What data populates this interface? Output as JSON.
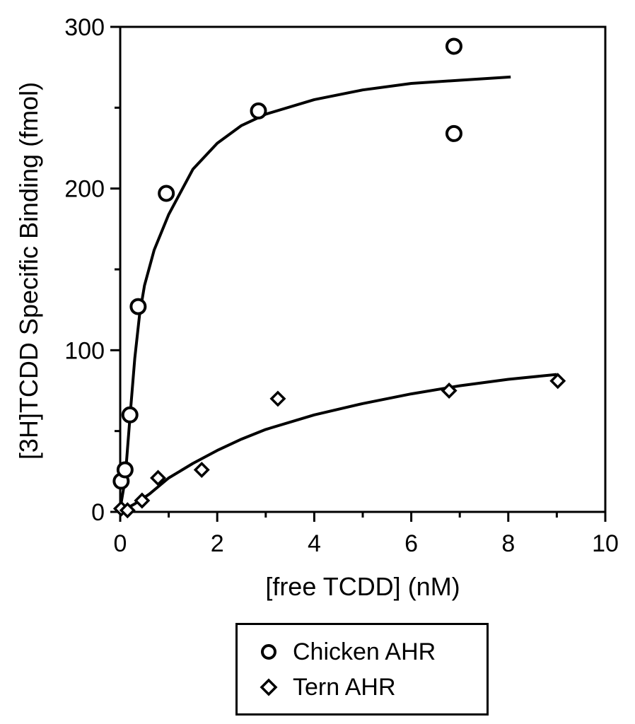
{
  "chart_data": {
    "type": "scatter",
    "xlabel": "[free TCDD] (nM)",
    "ylabel": "[3H]TCDD Specific Binding  (fmol)",
    "xlim": [
      0,
      10
    ],
    "ylim": [
      0,
      300
    ],
    "x_ticks": [
      "0",
      "2",
      "4",
      "6",
      "8",
      "10"
    ],
    "y_ticks": [
      "0",
      "100",
      "200",
      "300"
    ],
    "grid": false,
    "legend_position": "bottom-center",
    "series": [
      {
        "name": "Chicken AHR",
        "marker": "circle",
        "points": [
          {
            "x": 0.02,
            "y": 19
          },
          {
            "x": 0.1,
            "y": 26
          },
          {
            "x": 0.2,
            "y": 60
          },
          {
            "x": 0.37,
            "y": 127
          },
          {
            "x": 0.95,
            "y": 197
          },
          {
            "x": 2.85,
            "y": 248
          },
          {
            "x": 6.88,
            "y": 288
          },
          {
            "x": 6.88,
            "y": 234
          }
        ],
        "fit_curve": [
          {
            "x": 0.0,
            "y": 2
          },
          {
            "x": 0.1,
            "y": 20
          },
          {
            "x": 0.2,
            "y": 58
          },
          {
            "x": 0.3,
            "y": 95
          },
          {
            "x": 0.4,
            "y": 122
          },
          {
            "x": 0.5,
            "y": 140
          },
          {
            "x": 0.7,
            "y": 162
          },
          {
            "x": 1.0,
            "y": 184
          },
          {
            "x": 1.5,
            "y": 212
          },
          {
            "x": 2.0,
            "y": 228
          },
          {
            "x": 2.5,
            "y": 239
          },
          {
            "x": 3.0,
            "y": 246
          },
          {
            "x": 4.0,
            "y": 255
          },
          {
            "x": 5.0,
            "y": 261
          },
          {
            "x": 6.0,
            "y": 265
          },
          {
            "x": 7.0,
            "y": 267
          },
          {
            "x": 8.05,
            "y": 269
          }
        ]
      },
      {
        "name": "Tern AHR",
        "marker": "diamond",
        "points": [
          {
            "x": 0.02,
            "y": 2
          },
          {
            "x": 0.15,
            "y": 1
          },
          {
            "x": 0.45,
            "y": 7
          },
          {
            "x": 0.78,
            "y": 21
          },
          {
            "x": 1.68,
            "y": 26
          },
          {
            "x": 3.25,
            "y": 70
          },
          {
            "x": 6.78,
            "y": 75
          },
          {
            "x": 9.02,
            "y": 81
          }
        ],
        "fit_curve": [
          {
            "x": 0.0,
            "y": 0
          },
          {
            "x": 0.3,
            "y": 5
          },
          {
            "x": 0.6,
            "y": 11
          },
          {
            "x": 1.0,
            "y": 21
          },
          {
            "x": 1.5,
            "y": 30
          },
          {
            "x": 2.0,
            "y": 38
          },
          {
            "x": 2.5,
            "y": 45
          },
          {
            "x": 3.0,
            "y": 51
          },
          {
            "x": 4.0,
            "y": 60
          },
          {
            "x": 5.0,
            "y": 67
          },
          {
            "x": 6.0,
            "y": 73
          },
          {
            "x": 7.0,
            "y": 78
          },
          {
            "x": 8.0,
            "y": 82
          },
          {
            "x": 9.0,
            "y": 85
          }
        ]
      }
    ]
  }
}
